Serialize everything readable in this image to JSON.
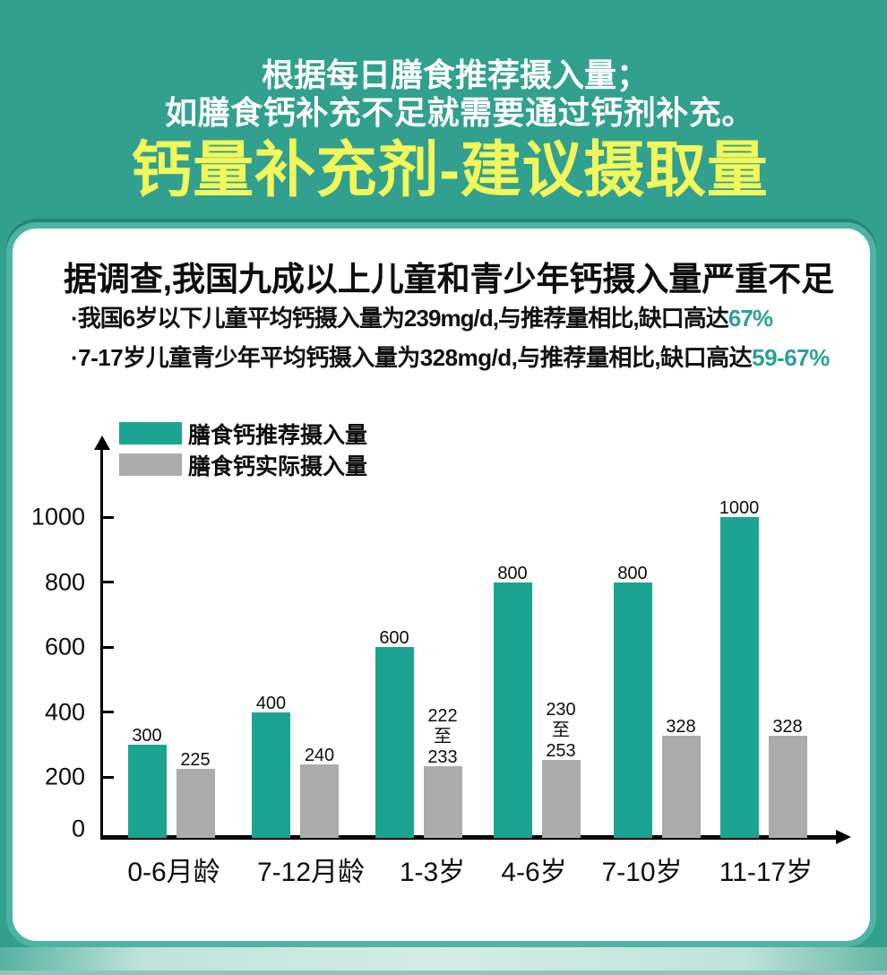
{
  "header": {
    "line1": "根据每日膳食推荐摄入量；",
    "line2": "如膳食钙补充不足就需要通过钙剂补充。",
    "title": "钙量补充剂-建议摄取量"
  },
  "card": {
    "heading": "据调查,我国九成以上儿童和青少年钙摄入量严重不足",
    "bullets": [
      {
        "text": "·我国6岁以下儿童平均钙摄入量为239mg/d,与推荐量相比,缺口高达",
        "highlight": "67%"
      },
      {
        "text": "·7-17岁儿童青少年平均钙摄入量为328mg/d,与推荐量相比,缺口高达",
        "highlight": "59-67%"
      }
    ]
  },
  "colors": {
    "background": "#31a08e",
    "title_yellow": "#f2f75c",
    "header_text": "#ffffff",
    "recommended_bar": "#1ca492",
    "actual_bar": "#ababab",
    "highlight_text": "#2aa294",
    "axis": "#000000"
  },
  "chart_data": {
    "type": "bar",
    "categories": [
      "0-6月龄",
      "7-12月龄",
      "1-3岁",
      "4-6岁",
      "7-10岁",
      "11-17岁"
    ],
    "series": [
      {
        "name": "膳食钙推荐摄入量",
        "color": "#1ca492",
        "values": [
          300,
          400,
          600,
          800,
          800,
          1000
        ],
        "labels": [
          "300",
          "400",
          "600",
          "800",
          "800",
          "1000"
        ]
      },
      {
        "name": "膳食钙实际摄入量",
        "color": "#ababab",
        "values": [
          225,
          240,
          233,
          253,
          328,
          328
        ],
        "labels": [
          "225",
          "240",
          "222\n至\n233",
          "230\n至\n253",
          "328",
          "328"
        ]
      }
    ],
    "ylim": [
      0,
      1100
    ],
    "yticks": [
      0,
      200,
      400,
      600,
      800,
      1000
    ],
    "xlabel": "",
    "ylabel": "",
    "grid": false,
    "legend_position": "top-left"
  }
}
